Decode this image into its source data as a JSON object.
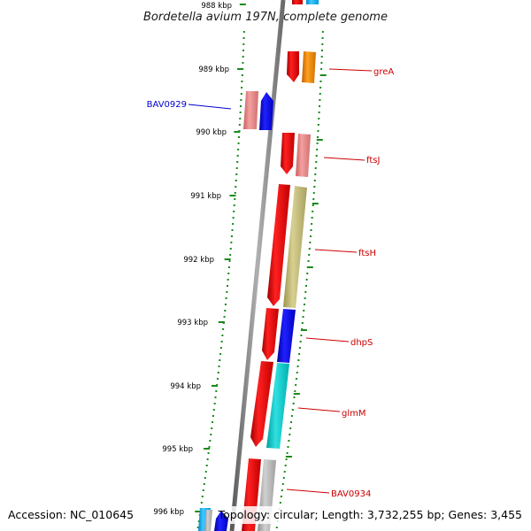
{
  "title": "Bordetella avium 197N, complete genome",
  "footer": {
    "accession": "Accession: NC_010645",
    "stats": "Topology: circular; Length: 3,732,255 bp; Genes: 3,455"
  },
  "ticks": [
    {
      "label": "988 kbp"
    },
    {
      "label": "989 kbp"
    },
    {
      "label": "990 kbp"
    },
    {
      "label": "991 kbp"
    },
    {
      "label": "992 kbp"
    },
    {
      "label": "993 kbp"
    },
    {
      "label": "994 kbp"
    },
    {
      "label": "995 kbp"
    },
    {
      "label": "996 kbp"
    }
  ],
  "gene_labels": [
    {
      "name": "greA",
      "color": "#cc0000",
      "side": "right"
    },
    {
      "name": "BAV0929",
      "color": "#0000cc",
      "side": "left"
    },
    {
      "name": "ftsJ",
      "color": "#cc0000",
      "side": "right"
    },
    {
      "name": "ftsH",
      "color": "#cc0000",
      "side": "right"
    },
    {
      "name": "dhpS",
      "color": "#cc0000",
      "side": "right"
    },
    {
      "name": "glmM",
      "color": "#cc0000",
      "side": "right"
    },
    {
      "name": "BAV0934",
      "color": "#cc0000",
      "side": "right"
    }
  ],
  "colors": {
    "backbone": "#7a7a7a",
    "tick": "#1a8a1a",
    "cds_forward": "#ff0000",
    "cds_reverse_blue": "#0000ff"
  }
}
